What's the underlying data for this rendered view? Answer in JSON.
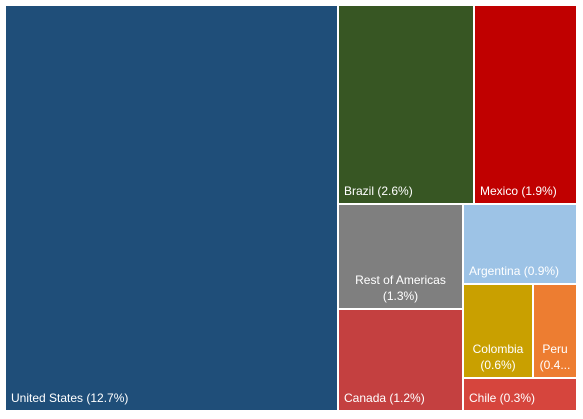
{
  "chart_data": {
    "type": "treemap",
    "title": "",
    "unit": "%",
    "items": [
      {
        "name": "United States",
        "value": 12.7,
        "label": "United States (12.7%)",
        "color": "#1f4e79"
      },
      {
        "name": "Brazil",
        "value": 2.6,
        "label": "Brazil (2.6%)",
        "color": "#375623"
      },
      {
        "name": "Mexico",
        "value": 1.9,
        "label": "Mexico (1.9%)",
        "color": "#c00000"
      },
      {
        "name": "Rest of Americas",
        "value": 1.3,
        "label_lines": [
          "Rest of Americas",
          "(1.3%)"
        ],
        "color": "#7f7f7f"
      },
      {
        "name": "Argentina",
        "value": 0.9,
        "label": "Argentina (0.9%)",
        "color": "#9dc3e6"
      },
      {
        "name": "Canada",
        "value": 1.2,
        "label": "Canada (1.2%)",
        "color": "#c44040"
      },
      {
        "name": "Colombia",
        "value": 0.6,
        "label_lines": [
          "Colombia",
          "(0.6%)"
        ],
        "color": "#c9a000"
      },
      {
        "name": "Peru",
        "value": 0.4,
        "label_lines": [
          "Peru",
          "(0.4..."
        ],
        "color": "#ed7d31"
      },
      {
        "name": "Chile",
        "value": 0.3,
        "label": "Chile (0.3%)",
        "color": "#d6453d"
      }
    ]
  }
}
